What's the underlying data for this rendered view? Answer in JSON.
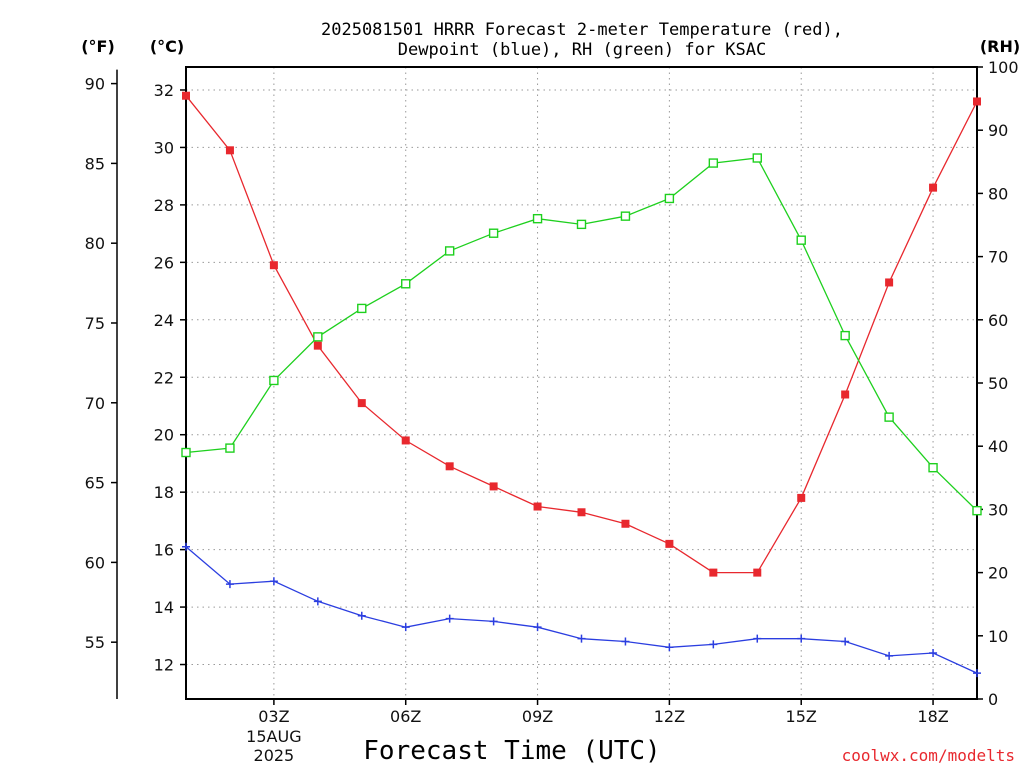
{
  "chart_data": {
    "type": "line",
    "title": [
      "2025081501 HRRR Forecast 2-meter Temperature (red),",
      "Dewpoint (blue), RH (green) for KSAC"
    ],
    "xlabel": "Forecast Time (UTC)",
    "units": {
      "left_outer": "(°F)",
      "left_inner": "(°C)",
      "right": "(RH)"
    },
    "x_hours": [
      1,
      2,
      3,
      4,
      5,
      6,
      7,
      8,
      9,
      10,
      11,
      12,
      13,
      14,
      15,
      16,
      17,
      18,
      19
    ],
    "xlim": [
      1,
      19
    ],
    "x_ticks": [
      {
        "hour": 3,
        "label": "03Z",
        "sub": [
          "15AUG",
          "2025"
        ]
      },
      {
        "hour": 6,
        "label": "06Z",
        "sub": []
      },
      {
        "hour": 9,
        "label": "09Z",
        "sub": []
      },
      {
        "hour": 12,
        "label": "12Z",
        "sub": []
      },
      {
        "hour": 15,
        "label": "15Z",
        "sub": []
      },
      {
        "hour": 18,
        "label": "18Z",
        "sub": []
      }
    ],
    "y_celsius": {
      "range": [
        10.8,
        32.8
      ],
      "ticks": [
        12,
        14,
        16,
        18,
        20,
        22,
        24,
        26,
        28,
        30,
        32
      ]
    },
    "y_fahrenheit": {
      "ticks": [
        55,
        60,
        65,
        70,
        75,
        80,
        85,
        90
      ]
    },
    "y_rh": {
      "range": [
        0,
        100
      ],
      "ticks": [
        0,
        10,
        20,
        30,
        40,
        50,
        60,
        70,
        80,
        90,
        100
      ]
    },
    "grid": true,
    "series": [
      {
        "name": "Temperature",
        "axis": "celsius",
        "color": "#e8282e",
        "marker": "filled-square",
        "values": [
          31.8,
          29.9,
          25.9,
          23.1,
          21.1,
          19.8,
          18.9,
          18.2,
          17.5,
          17.3,
          16.9,
          16.2,
          15.2,
          15.2,
          17.8,
          21.4,
          25.3,
          28.6,
          31.6
        ]
      },
      {
        "name": "Dewpoint",
        "axis": "celsius",
        "color": "#2b3ee0",
        "marker": "plus",
        "values": [
          16.1,
          14.8,
          14.9,
          14.2,
          13.7,
          13.3,
          13.6,
          13.5,
          13.3,
          12.9,
          12.8,
          12.6,
          12.7,
          12.9,
          12.9,
          12.8,
          12.3,
          12.4,
          11.7
        ]
      },
      {
        "name": "RH",
        "axis": "rh",
        "color": "#1ed01e",
        "marker": "open-square",
        "values": [
          39,
          39.7,
          50.4,
          57.3,
          61.8,
          65.7,
          70.9,
          73.7,
          76,
          75.1,
          76.4,
          79.2,
          84.8,
          85.6,
          72.6,
          57.5,
          44.6,
          36.6,
          29.8
        ]
      }
    ]
  },
  "footer": {
    "source": "coolwx.com/modelts"
  },
  "colors": {
    "temperature": "#e8282e",
    "dewpoint": "#2b3ee0",
    "rh": "#1ed01e"
  }
}
